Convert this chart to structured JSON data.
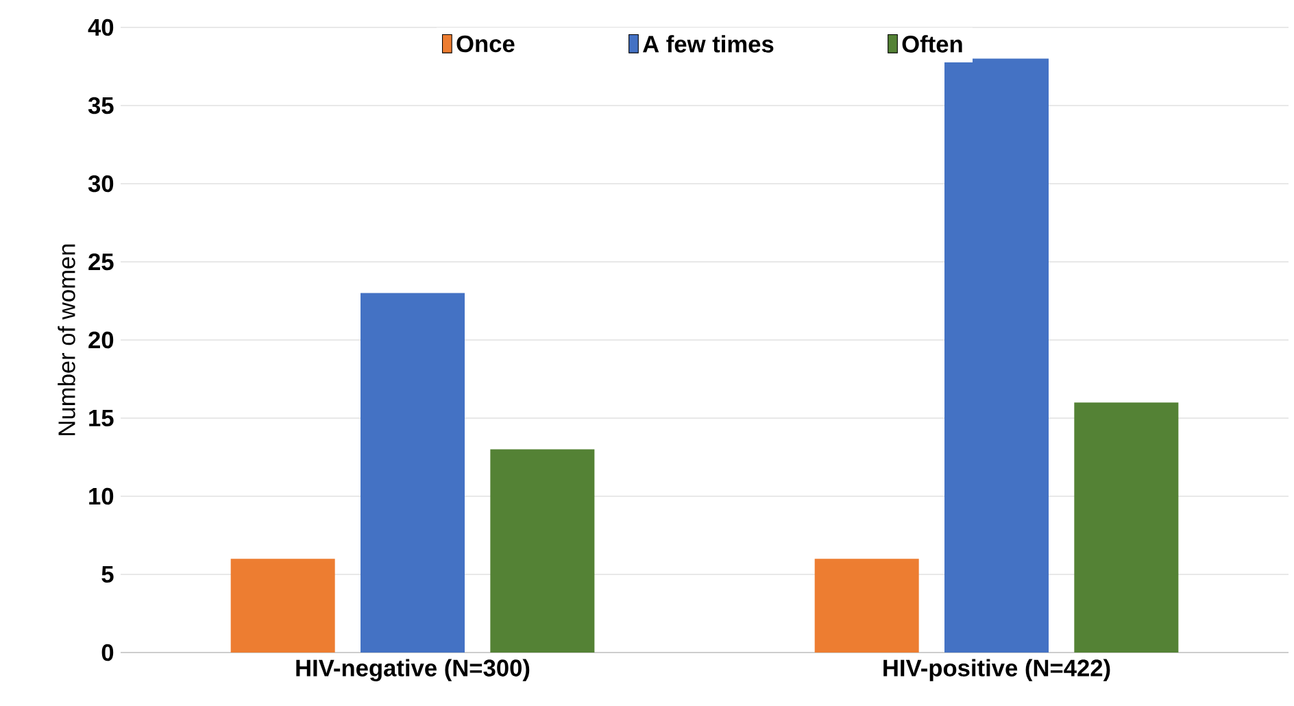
{
  "chart_data": {
    "type": "bar",
    "ylabel": "Number of women",
    "categories": [
      "HIV-negative (N=300)",
      "HIV-positive (N=422)"
    ],
    "series": [
      {
        "name": "Once",
        "color": "#ed7d31",
        "values": [
          6,
          6
        ]
      },
      {
        "name": "A few times",
        "color": "#4472c4",
        "values": [
          23,
          38
        ]
      },
      {
        "name": "Often",
        "color": "#548235",
        "values": [
          13,
          16
        ]
      }
    ],
    "ylim": [
      0,
      40
    ],
    "yticks": [
      0,
      5,
      10,
      15,
      20,
      25,
      30,
      35,
      40
    ],
    "grid": "y",
    "legend": "top"
  }
}
